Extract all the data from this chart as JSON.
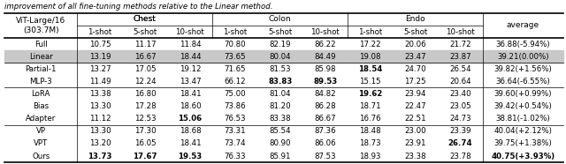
{
  "caption": "improvement of all fine-tuning methods relative to the Linear method.",
  "rows": [
    {
      "name": "Full",
      "values": [
        "10.75",
        "11.17",
        "11.84",
        "70.80",
        "82.19",
        "86.22",
        "17.22",
        "20.06",
        "21.72"
      ],
      "avg": "36.88(-5.94%)",
      "bold_vals": [],
      "bold_avg": false,
      "gray_bg": false
    },
    {
      "name": "Linear",
      "values": [
        "13.19",
        "16.67",
        "18.44",
        "73.65",
        "80.04",
        "84.49",
        "19.08",
        "23.47",
        "23.87"
      ],
      "avg": "39.21(0.00%)",
      "bold_vals": [],
      "bold_avg": false,
      "gray_bg": true
    },
    {
      "name": "Partial-1",
      "values": [
        "13.27",
        "17.05",
        "19.12",
        "71.65",
        "81.53",
        "85.98",
        "18.54",
        "24.70",
        "26.54"
      ],
      "avg": "39.82(+1.56%)",
      "bold_vals": [
        7
      ],
      "bold_avg": false,
      "gray_bg": false
    },
    {
      "name": "MLP-3",
      "values": [
        "11.49",
        "12.24",
        "13.47",
        "66.12",
        "83.83",
        "89.53",
        "15.15",
        "17.25",
        "20.64"
      ],
      "avg": "36.64(-6.55%)",
      "bold_vals": [
        5,
        6
      ],
      "bold_avg": false,
      "gray_bg": false
    },
    {
      "name": "LoRA",
      "values": [
        "13.38",
        "16.80",
        "18.41",
        "75.00",
        "81.04",
        "84.82",
        "19.62",
        "23.94",
        "23.40"
      ],
      "avg": "39.60(+0.99%)",
      "bold_vals": [
        7
      ],
      "bold_avg": false,
      "gray_bg": false
    },
    {
      "name": "Bias",
      "values": [
        "13.30",
        "17.28",
        "18.60",
        "73.86",
        "81.20",
        "86.28",
        "18.71",
        "22.47",
        "23.05"
      ],
      "avg": "39.42(+0.54%)",
      "bold_vals": [],
      "bold_avg": false,
      "gray_bg": false
    },
    {
      "name": "Adapter",
      "values": [
        "11.12",
        "12.53",
        "15.06",
        "76.53",
        "83.38",
        "86.67",
        "16.76",
        "22.51",
        "24.73"
      ],
      "avg": "38.81(-1.02%)",
      "bold_vals": [
        3
      ],
      "bold_avg": false,
      "gray_bg": false
    },
    {
      "name": "VP",
      "values": [
        "13.30",
        "17.30",
        "18.68",
        "73.31",
        "85.54",
        "87.36",
        "18.48",
        "23.00",
        "23.39"
      ],
      "avg": "40.04(+2.12%)",
      "bold_vals": [],
      "bold_avg": false,
      "gray_bg": false
    },
    {
      "name": "VPT",
      "values": [
        "13.20",
        "16.05",
        "18.41",
        "73.74",
        "80.90",
        "86.06",
        "18.73",
        "23.91",
        "26.74"
      ],
      "avg": "39.75(+1.38%)",
      "bold_vals": [
        9
      ],
      "bold_avg": false,
      "gray_bg": false
    },
    {
      "name": "Ours",
      "values": [
        "13.73",
        "17.67",
        "19.53",
        "76.33",
        "85.91",
        "87.53",
        "18.93",
        "23.38",
        "23.78"
      ],
      "avg": "40.75(+3.93%)",
      "bold_vals": [
        1,
        2,
        3
      ],
      "bold_avg": true,
      "gray_bg": false
    }
  ],
  "group_separators_after": [
    1,
    3,
    6
  ],
  "gray_color": "#c8c8c8",
  "font_size": 6.2,
  "header_font_size": 6.5
}
